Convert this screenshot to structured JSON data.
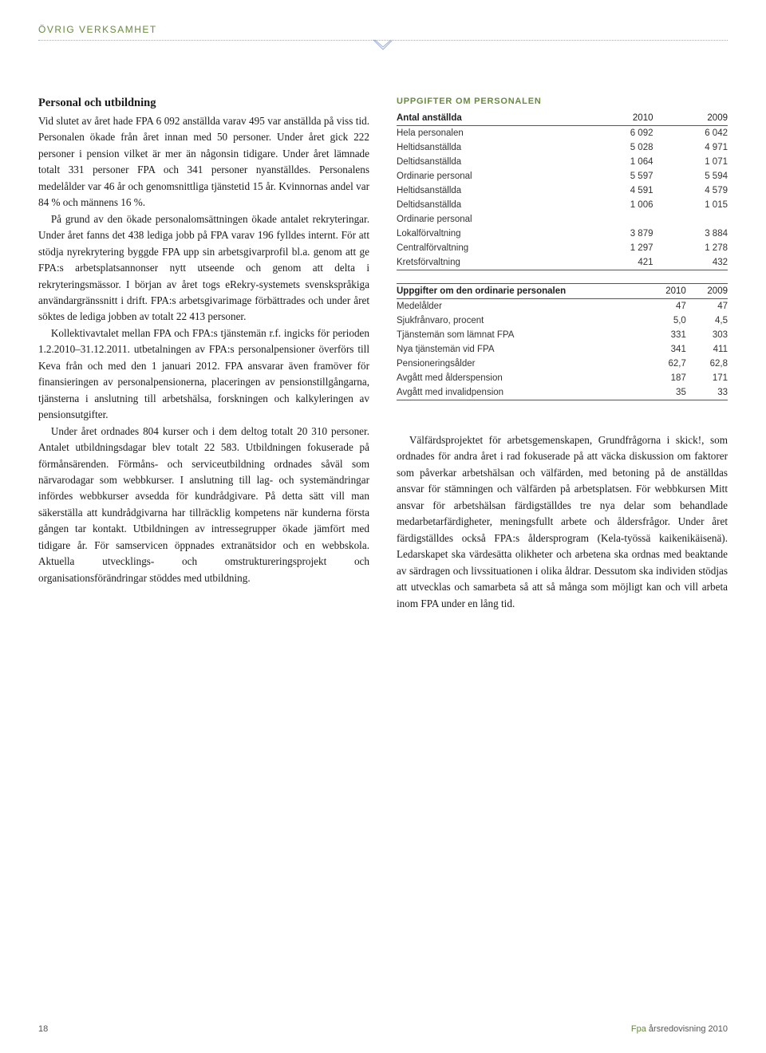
{
  "section_label": "ÖVRIG VERKSAMHET",
  "heading": "Personal och utbildning",
  "paragraphs_left": [
    "Vid slutet av året hade FPA 6 092 anställda varav 495 var anställda på viss tid. Personalen ökade från året innan med 50 personer. Under året gick 222 personer i pension vilket är mer än någonsin tidigare. Under året lämnade totalt 331 personer FPA och 341 personer nyanställdes. Personalens medelålder var 46 år och genomsnittliga tjänstetid 15 år. Kvinnornas andel var 84 % och männens 16 %.",
    "På grund av den ökade personalomsättningen ökade antalet rekryteringar. Under året fanns det 438 lediga jobb på FPA varav 196 fylldes internt. För att stödja nyrekrytering byggde FPA upp sin arbetsgivarprofil bl.a. genom att ge FPA:s arbetsplatsannonser nytt utseende och genom att delta i rekryteringsmässor. I början av året togs eRekry-systemets svenskspråkiga användargränssnitt i drift. FPA:s arbetsgivarimage förbättrades och under året söktes de lediga jobben av totalt 22 413 personer.",
    "Kollektivavtalet mellan FPA och FPA:s tjänstemän r.f. ingicks för perioden 1.2.2010–31.12.2011. utbetalningen av FPA:s personalpensioner överförs till Keva från och med den 1 januari 2012. FPA ansvarar även framöver för finansieringen av personalpensionerna, placeringen av pensionstillgångarna, tjänsterna i anslutning till arbetshälsa, forskningen och kalkyleringen av pensionsutgifter.",
    "Under året ordnades 804 kurser och i dem deltog totalt 20 310 personer. Antalet utbildningsdagar blev totalt 22 583. Utbildningen fokuserade på förmånsärenden. Förmåns- och serviceutbildning ordnades såväl som närvarodagar som webbkurser. I anslutning till lag- och systemändringar infördes webbkurser avsedda för kundrådgivare. På detta sätt vill man säkerställa att kundrådgivarna har tillräcklig kompetens när kunderna första gången tar kontakt. Utbildningen av intressegrupper ökade jämfört med tidigare år. För samservicen öppnades extranätsidor och en webbskola. Aktuella utvecklings- och omstruktureringsprojekt och organisationsförändringar stöddes med utbildning."
  ],
  "table_title": "UPPGIFTER OM PERSONALEN",
  "table1": {
    "head": [
      "Antal anställda",
      "2010",
      "2009"
    ],
    "rows": [
      {
        "l": "Hela personalen",
        "a": "6 092",
        "b": "6 042"
      },
      {
        "l": "Heltidsanställda",
        "a": "5 028",
        "b": "4 971"
      },
      {
        "l": "Deltidsanställda",
        "a": "1 064",
        "b": "1 071"
      },
      {
        "l": "Ordinarie personal",
        "a": "5 597",
        "b": "5 594"
      },
      {
        "l": "Heltidsanställda",
        "a": "4 591",
        "b": "4 579"
      },
      {
        "l": "Deltidsanställda",
        "a": "1 006",
        "b": "1 015"
      },
      {
        "l": "Ordinarie personal",
        "a": "",
        "b": ""
      },
      {
        "l": "Lokalförvaltning",
        "a": "3 879",
        "b": "3 884"
      },
      {
        "l": "Centralförvaltning",
        "a": "1 297",
        "b": "1 278"
      },
      {
        "l": "Kretsförvaltning",
        "a": "421",
        "b": "432"
      }
    ]
  },
  "table2": {
    "head": [
      "Uppgifter om den ordinarie personalen",
      "2010",
      "2009"
    ],
    "rows": [
      {
        "l": "Medelålder",
        "a": "47",
        "b": "47"
      },
      {
        "l": "Sjukfrånvaro, procent",
        "a": "5,0",
        "b": "4,5"
      },
      {
        "l": "Tjänstemän som lämnat FPA",
        "a": "331",
        "b": "303"
      },
      {
        "l": "Nya tjänstemän vid FPA",
        "a": "341",
        "b": "411"
      },
      {
        "l": "Pensioneringsålder",
        "a": "62,7",
        "b": "62,8"
      },
      {
        "l": "Avgått med ålderspension",
        "a": "187",
        "b": "171"
      },
      {
        "l": "Avgått med invalidpension",
        "a": "35",
        "b": "33"
      }
    ]
  },
  "paragraph_right": "Välfärdsprojektet för arbetsgemenskapen, Grundfrågorna i skick!, som ordnades för andra året i rad fokuserade på att väcka diskussion om faktorer som påverkar arbetshälsan och välfärden, med betoning på de anställdas ansvar för stämningen och välfärden på arbetsplatsen. För webbkursen Mitt ansvar för arbetshälsan färdigställdes tre nya delar som behandlade medarbetarfärdigheter, meningsfullt arbete och åldersfrågor. Under året färdigställdes också FPA:s åldersprogram (Kela-työssä kaikenikäisenä). Ledarskapet ska värdesätta olikheter och arbetena ska ordnas med beaktande av särdragen och livssituationen i olika åldrar. Dessutom ska individen stödjas att utvecklas och samarbeta så att så många som möjligt kan och vill arbeta inom FPA under en lång tid.",
  "footer": {
    "page": "18",
    "pub": "Fpa",
    "tail": " årsredovisning 2010"
  },
  "colors": {
    "accent": "#688a3f",
    "rule": "#9aaed0"
  }
}
